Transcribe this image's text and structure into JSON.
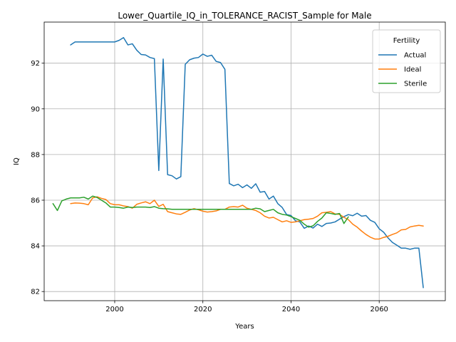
{
  "chart_data": {
    "type": "line",
    "title": "Lower_Quartile_IQ_in_TOLERANCE_RACIST_Sample for Male",
    "xlabel": "Years",
    "ylabel": "IQ",
    "xlim": [
      1984,
      2075
    ],
    "ylim": [
      81.6,
      93.8
    ],
    "xticks": [
      2000,
      2020,
      2040,
      2060
    ],
    "yticks": [
      82,
      84,
      86,
      88,
      90,
      92
    ],
    "grid": true,
    "legend": {
      "title": "Fertility",
      "placement": "top-right"
    },
    "series": [
      {
        "name": "Actual",
        "color": "#1f77b4",
        "x": [
          1990,
          1991,
          1992,
          1993,
          1994,
          1995,
          1996,
          1997,
          1998,
          1999,
          2000,
          2001,
          2002,
          2003,
          2004,
          2005,
          2006,
          2007,
          2008,
          2009,
          2010,
          2011,
          2012,
          2013,
          2014,
          2015,
          2016,
          2017,
          2018,
          2019,
          2020,
          2021,
          2022,
          2023,
          2024,
          2025,
          2026,
          2027,
          2028,
          2029,
          2030,
          2031,
          2032,
          2033,
          2034,
          2035,
          2036,
          2037,
          2038,
          2039,
          2040,
          2041,
          2042,
          2043,
          2044,
          2045,
          2046,
          2047,
          2048,
          2049,
          2050,
          2051,
          2052,
          2053,
          2054,
          2055,
          2056,
          2057,
          2058,
          2059,
          2060,
          2061,
          2062,
          2063,
          2064,
          2065,
          2066,
          2067,
          2068,
          2069,
          2070
        ],
        "y": [
          92.8,
          92.93,
          92.93,
          92.93,
          92.93,
          92.93,
          92.93,
          92.93,
          92.93,
          92.93,
          92.93,
          93.0,
          93.12,
          92.8,
          92.85,
          92.57,
          92.38,
          92.36,
          92.25,
          92.2,
          87.3,
          92.18,
          87.12,
          87.07,
          86.93,
          87.03,
          91.95,
          92.15,
          92.22,
          92.25,
          92.4,
          92.3,
          92.35,
          92.08,
          92.03,
          91.73,
          86.73,
          86.63,
          86.7,
          86.55,
          86.67,
          86.52,
          86.72,
          86.35,
          86.38,
          86.05,
          86.18,
          85.85,
          85.68,
          85.37,
          85.33,
          85.1,
          85.05,
          84.77,
          84.87,
          84.78,
          84.95,
          84.85,
          84.98,
          85.0,
          85.05,
          85.17,
          85.28,
          85.37,
          85.32,
          85.43,
          85.3,
          85.33,
          85.12,
          85.03,
          84.75,
          84.6,
          84.35,
          84.15,
          84.03,
          83.9,
          83.9,
          83.85,
          83.9,
          83.9,
          82.17
        ]
      },
      {
        "name": "Ideal",
        "color": "#ff7f0e",
        "x": [
          1990,
          1991,
          1992,
          1993,
          1994,
          1995,
          1996,
          1997,
          1998,
          1999,
          2000,
          2001,
          2002,
          2003,
          2004,
          2005,
          2006,
          2007,
          2008,
          2009,
          2010,
          2011,
          2012,
          2013,
          2014,
          2015,
          2016,
          2017,
          2018,
          2019,
          2020,
          2021,
          2022,
          2023,
          2024,
          2025,
          2026,
          2027,
          2028,
          2029,
          2030,
          2031,
          2032,
          2033,
          2034,
          2035,
          2036,
          2037,
          2038,
          2039,
          2040,
          2041,
          2042,
          2043,
          2044,
          2045,
          2046,
          2047,
          2048,
          2049,
          2050,
          2051,
          2052,
          2053,
          2054,
          2055,
          2056,
          2057,
          2058,
          2059,
          2060,
          2061,
          2062,
          2063,
          2064,
          2065,
          2066,
          2067,
          2068,
          2069,
          2070
        ],
        "y": [
          85.85,
          85.88,
          85.87,
          85.85,
          85.8,
          86.1,
          86.15,
          86.08,
          86.03,
          85.85,
          85.8,
          85.8,
          85.75,
          85.72,
          85.65,
          85.82,
          85.88,
          85.93,
          85.85,
          86.0,
          85.73,
          85.82,
          85.5,
          85.45,
          85.4,
          85.38,
          85.47,
          85.57,
          85.63,
          85.58,
          85.52,
          85.48,
          85.5,
          85.53,
          85.6,
          85.6,
          85.7,
          85.72,
          85.7,
          85.78,
          85.65,
          85.6,
          85.55,
          85.45,
          85.3,
          85.22,
          85.25,
          85.15,
          85.05,
          85.1,
          85.03,
          85.05,
          85.1,
          85.15,
          85.17,
          85.2,
          85.3,
          85.45,
          85.47,
          85.5,
          85.4,
          85.38,
          85.25,
          85.15,
          84.95,
          84.82,
          84.65,
          84.5,
          84.38,
          84.3,
          84.3,
          84.37,
          84.42,
          84.5,
          84.57,
          84.7,
          84.72,
          84.83,
          84.87,
          84.9,
          84.87
        ]
      },
      {
        "name": "Sterile",
        "color": "#2ca02c",
        "x": [
          1986,
          1987,
          1988,
          1989,
          1990,
          1991,
          1992,
          1993,
          1994,
          1995,
          1996,
          1997,
          1998,
          1999,
          2000,
          2001,
          2002,
          2003,
          2004,
          2005,
          2006,
          2007,
          2008,
          2009,
          2010,
          2011,
          2012,
          2013,
          2014,
          2015,
          2016,
          2017,
          2018,
          2019,
          2020,
          2021,
          2022,
          2023,
          2024,
          2025,
          2026,
          2027,
          2028,
          2029,
          2030,
          2031,
          2032,
          2033,
          2034,
          2035,
          2036,
          2037,
          2038,
          2039,
          2040,
          2041,
          2042,
          2043,
          2044,
          2045,
          2046,
          2047,
          2048,
          2049,
          2050,
          2051,
          2052,
          2053
        ],
        "y": [
          85.85,
          85.55,
          85.97,
          86.05,
          86.1,
          86.1,
          86.1,
          86.13,
          86.05,
          86.18,
          86.12,
          86.0,
          85.88,
          85.7,
          85.7,
          85.68,
          85.65,
          85.7,
          85.68,
          85.7,
          85.7,
          85.7,
          85.68,
          85.72,
          85.65,
          85.63,
          85.62,
          85.6,
          85.6,
          85.6,
          85.6,
          85.6,
          85.6,
          85.6,
          85.6,
          85.6,
          85.6,
          85.6,
          85.6,
          85.6,
          85.6,
          85.6,
          85.6,
          85.6,
          85.6,
          85.6,
          85.65,
          85.62,
          85.5,
          85.55,
          85.6,
          85.45,
          85.38,
          85.35,
          85.28,
          85.2,
          85.12,
          84.95,
          84.82,
          84.88,
          85.07,
          85.22,
          85.45,
          85.42,
          85.38,
          85.42,
          84.98,
          85.27
        ]
      }
    ]
  }
}
